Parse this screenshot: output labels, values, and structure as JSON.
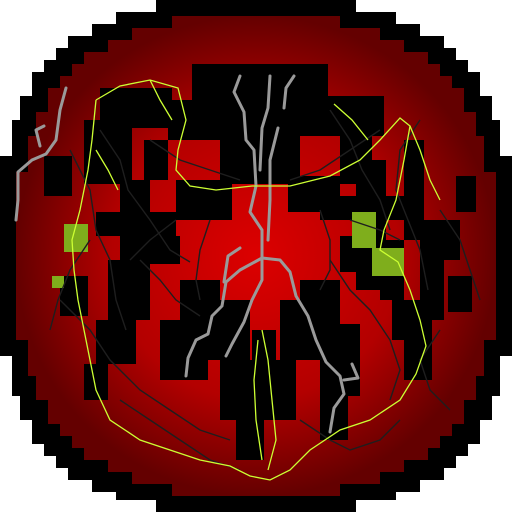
{
  "colors": {
    "background": "#ffffff",
    "outer_ring": "#000000",
    "disk_center": "#dc0000",
    "disk_edge": "#640000",
    "green_patch": "#7fae1c",
    "vessel_gray": "#9a9a9a",
    "vessel_dark": "#1a1a1a",
    "trace_green": "#ccff33"
  }
}
